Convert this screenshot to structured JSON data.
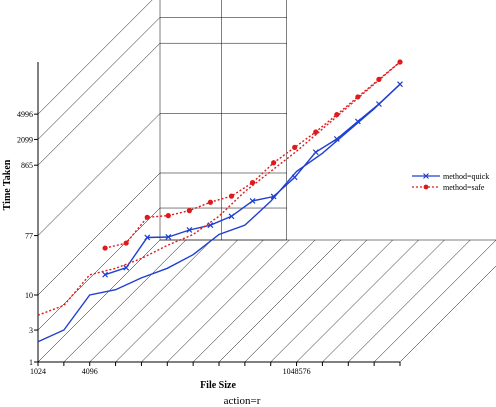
{
  "chart_data": {
    "type": "line",
    "title": "",
    "xlabel": "File Size",
    "ylabel": "Time Taken",
    "footer": "action=r",
    "x_scale": "log2",
    "y_scale": "log",
    "x_ticks": [
      {
        "value": 1024,
        "label": "1024"
      },
      {
        "value": 4096,
        "label": "4096"
      },
      {
        "value": 1048576,
        "label": "1048576"
      }
    ],
    "y_ticks": [
      {
        "value": 1,
        "label": "1"
      },
      {
        "value": 3,
        "label": "3"
      },
      {
        "value": 10,
        "label": "10"
      },
      {
        "value": 77,
        "label": "77"
      },
      {
        "value": 865,
        "label": "865"
      },
      {
        "value": 2099,
        "label": "2099"
      },
      {
        "value": 4996,
        "label": "4996"
      }
    ],
    "legend_position": "right",
    "series": [
      {
        "name": "method=quick",
        "color": "#1f3fd0",
        "line_style": "solid",
        "marker": "x",
        "points": [
          {
            "x": 1024,
            "y": 2
          },
          {
            "x": 2048,
            "y": 3
          },
          {
            "x": 4096,
            "y": 10
          },
          {
            "x": 8192,
            "y": 12
          },
          {
            "x": 16384,
            "y": 18
          },
          {
            "x": 32768,
            "y": 25
          },
          {
            "x": 65536,
            "y": 40
          },
          {
            "x": 131072,
            "y": 80
          },
          {
            "x": 262144,
            "y": 110
          },
          {
            "x": 524288,
            "y": 250
          },
          {
            "x": 1048576,
            "y": 700
          },
          {
            "x": 2097152,
            "y": 1300
          },
          {
            "x": 4194304,
            "y": 2800
          },
          {
            "x": 8388608,
            "y": 6000
          },
          {
            "x": 16777216,
            "y": 14000
          }
        ]
      },
      {
        "name": "method=safe",
        "color": "#e0191a",
        "line_style": "dotted",
        "marker": "dot",
        "points": [
          {
            "x": 1024,
            "y": 5
          },
          {
            "x": 2048,
            "y": 7
          },
          {
            "x": 4096,
            "y": 20
          },
          {
            "x": 8192,
            "y": 25
          },
          {
            "x": 16384,
            "y": 35
          },
          {
            "x": 32768,
            "y": 55
          },
          {
            "x": 65536,
            "y": 80
          },
          {
            "x": 131072,
            "y": 150
          },
          {
            "x": 262144,
            "y": 350
          },
          {
            "x": 524288,
            "y": 700
          },
          {
            "x": 1048576,
            "y": 1400
          },
          {
            "x": 2097152,
            "y": 3000
          },
          {
            "x": 4194304,
            "y": 6500
          },
          {
            "x": 8388608,
            "y": 14000
          },
          {
            "x": 16777216,
            "y": 30000
          }
        ]
      }
    ]
  }
}
